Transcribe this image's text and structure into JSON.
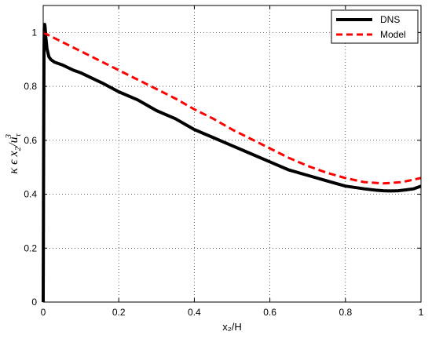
{
  "chart_data": {
    "type": "line",
    "xlabel": "x₂/H",
    "ylabel": "κ ϵ x₂ / u_τ³",
    "ylabel_parts": {
      "main": "κ ϵ x",
      "sub": "2",
      "slash": "/u",
      "sub2": "τ",
      "sup": "3"
    },
    "xlim": [
      0,
      1
    ],
    "ylim": [
      0,
      1.1
    ],
    "grid": true,
    "grid_style": "dotted",
    "legend_position": "top-right",
    "x_ticks": [
      0,
      0.2,
      0.4,
      0.6,
      0.8,
      1
    ],
    "x_tick_labels": [
      "0",
      "0.2",
      "0.4",
      "0.6",
      "0.8",
      "1"
    ],
    "y_ticks": [
      0,
      0.2,
      0.4,
      0.6,
      0.8,
      1
    ],
    "y_tick_labels": [
      "0",
      "0.2",
      "0.4",
      "0.6",
      "0.8",
      "1"
    ],
    "series": [
      {
        "name": "DNS",
        "color": "#000000",
        "style": "solid",
        "x": [
          0,
          0.001,
          0.002,
          0.003,
          0.004,
          0.005,
          0.007,
          0.01,
          0.015,
          0.02,
          0.03,
          0.05,
          0.08,
          0.1,
          0.13,
          0.16,
          0.2,
          0.25,
          0.3,
          0.35,
          0.4,
          0.45,
          0.5,
          0.55,
          0.6,
          0.65,
          0.7,
          0.75,
          0.8,
          0.85,
          0.88,
          0.9,
          0.92,
          0.94,
          0.96,
          0.98,
          1.0
        ],
        "y": [
          0.0,
          0.5,
          0.92,
          1.02,
          1.03,
          1.02,
          0.98,
          0.94,
          0.91,
          0.9,
          0.89,
          0.88,
          0.86,
          0.85,
          0.83,
          0.81,
          0.78,
          0.75,
          0.71,
          0.68,
          0.64,
          0.61,
          0.58,
          0.55,
          0.52,
          0.49,
          0.47,
          0.45,
          0.43,
          0.42,
          0.415,
          0.413,
          0.412,
          0.413,
          0.416,
          0.42,
          0.43
        ]
      },
      {
        "name": "Model",
        "color": "#ff0000",
        "style": "dashed",
        "x": [
          0,
          0.05,
          0.1,
          0.15,
          0.2,
          0.25,
          0.3,
          0.35,
          0.4,
          0.45,
          0.5,
          0.55,
          0.6,
          0.65,
          0.7,
          0.75,
          0.8,
          0.85,
          0.9,
          0.95,
          1.0
        ],
        "y": [
          1.0,
          0.965,
          0.93,
          0.895,
          0.86,
          0.825,
          0.79,
          0.755,
          0.715,
          0.68,
          0.64,
          0.605,
          0.57,
          0.535,
          0.505,
          0.48,
          0.46,
          0.445,
          0.44,
          0.445,
          0.46
        ]
      }
    ]
  }
}
